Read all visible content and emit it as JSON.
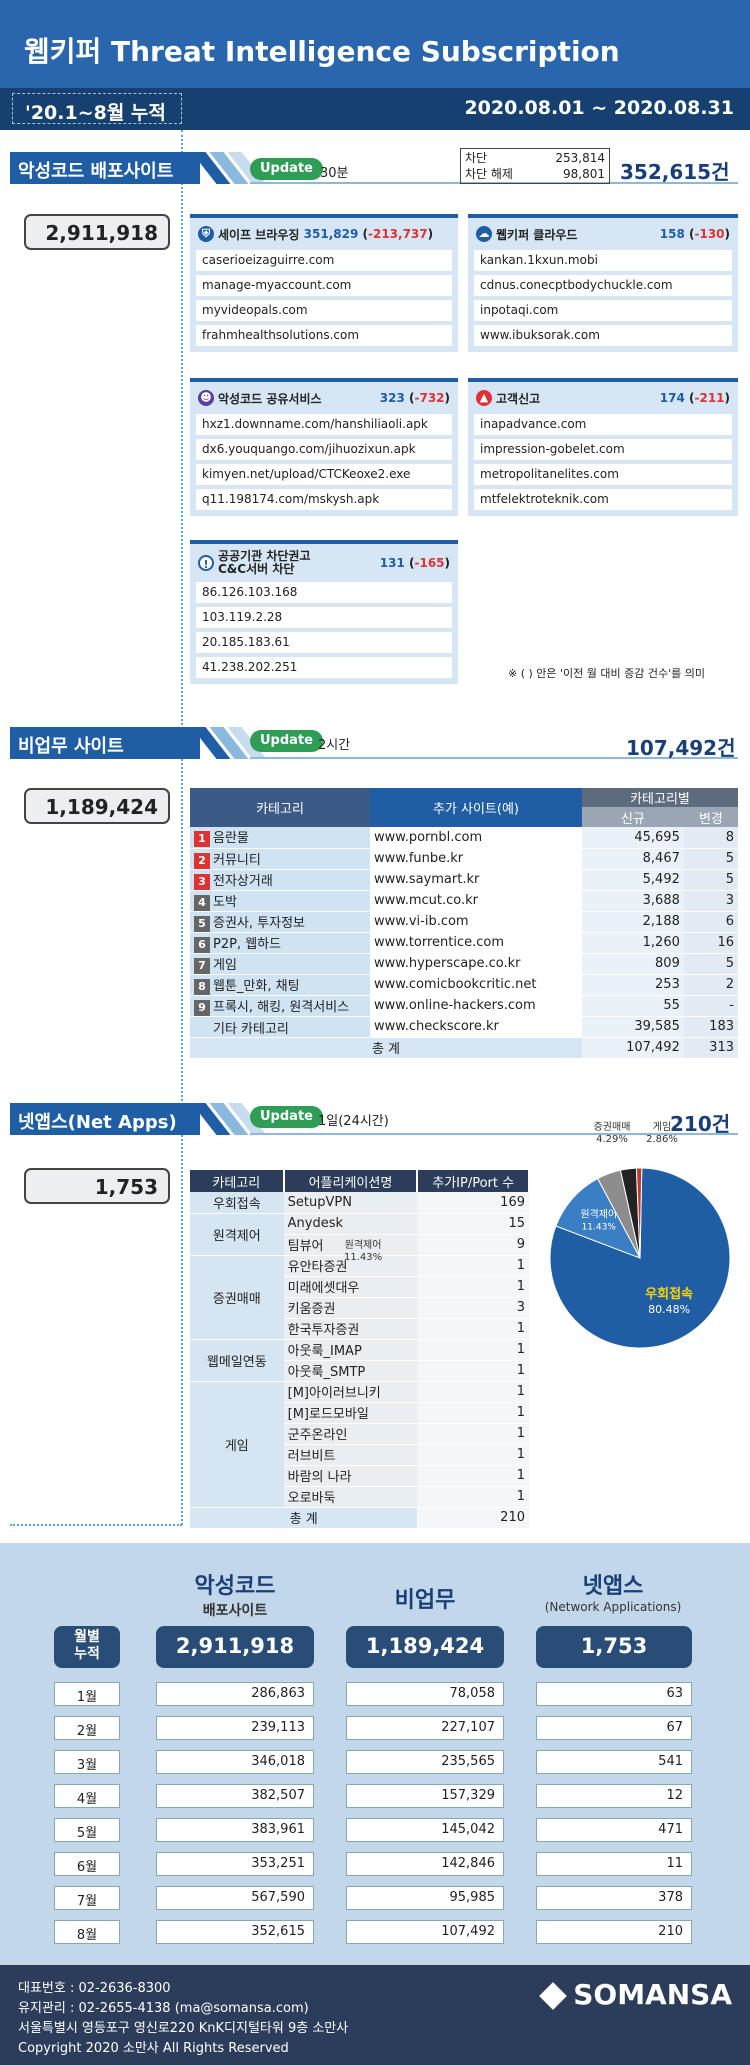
{
  "header": {
    "title": "웹키퍼 Threat Intelligence Subscription",
    "period_label": "'20.1~8월 누적",
    "date_range": "2020.08.01 ~ 2020.08.31"
  },
  "s1": {
    "title": "악성코드 배포사이트",
    "update": "Update",
    "update_freq": "30분",
    "block_label": "차단",
    "block_val": "253,814",
    "unblock_label": "차단 해제",
    "unblock_val": "98,801",
    "total": "352,615건",
    "cumulative": "2,911,918",
    "boxes": [
      {
        "name": "세이프 브라우징",
        "count": "351,829",
        "delta": "-213,737",
        "items": [
          "caserioeizaguirre.com",
          "manage-myaccount.com",
          "myvideopals.com",
          "frahmhealthsolutions.com"
        ]
      },
      {
        "name": "웹키퍼 클라우드",
        "count": "158",
        "delta": "-130",
        "items": [
          "kankan.1kxun.mobi",
          "cdnus.conecptbodychuckle.com",
          "inpotaqi.com",
          "www.ibuksorak.com"
        ]
      },
      {
        "name": "악성코드 공유서비스",
        "count": "323",
        "delta": "-732",
        "items": [
          "hxz1.downname.com/hanshiliaoli.apk",
          "dx6.youquango.com/jihuozixun.apk",
          "kimyen.net/upload/CTCKeoxe2.exe",
          "q11.198174.com/mskysh.apk"
        ]
      },
      {
        "name": "고객신고",
        "count": "174",
        "delta": "-211",
        "items": [
          "inapadvance.com",
          "impression-gobelet.com",
          "metropolitanelites.com",
          "mtfelektroteknik.com"
        ]
      },
      {
        "name1": "공공기관 차단권고",
        "name2": "C&C서버 차단",
        "count": "131",
        "delta": "-165",
        "items": [
          "86.126.103.168",
          "103.119.2.28",
          "20.185.183.61",
          "41.238.202.251"
        ]
      }
    ],
    "note": "※ ( ) 안은 '이전 월 대비 증감 건수'를 의미"
  },
  "s2": {
    "title": "비업무 사이트",
    "update": "Update",
    "update_freq": "2시간",
    "total": "107,492건",
    "cumulative": "1,189,424",
    "headers": [
      "카테고리",
      "추가 사이트(예)",
      "카테고리별",
      "신규",
      "변경"
    ],
    "rows": [
      {
        "n": "1",
        "cat": "음란물",
        "site": "www.pornbl.com",
        "new": "45,695",
        "chg": "8"
      },
      {
        "n": "2",
        "cat": "커뮤니티",
        "site": "www.funbe.kr",
        "new": "8,467",
        "chg": "5"
      },
      {
        "n": "3",
        "cat": "전자상거래",
        "site": "www.saymart.kr",
        "new": "5,492",
        "chg": "5"
      },
      {
        "n": "4",
        "cat": "도박",
        "site": "www.mcut.co.kr",
        "new": "3,688",
        "chg": "3"
      },
      {
        "n": "5",
        "cat": "증권사, 투자정보",
        "site": "www.vi-ib.com",
        "new": "2,188",
        "chg": "6"
      },
      {
        "n": "6",
        "cat": "P2P, 웹하드",
        "site": "www.torrentice.com",
        "new": "1,260",
        "chg": "16"
      },
      {
        "n": "7",
        "cat": "게임",
        "site": "www.hyperscape.co.kr",
        "new": "809",
        "chg": "5"
      },
      {
        "n": "8",
        "cat": "웹툰_만화, 채팅",
        "site": "www.comicbookcritic.net",
        "new": "253",
        "chg": "2"
      },
      {
        "n": "9",
        "cat": "프록시, 해킹, 원격서비스",
        "site": "www.online-hackers.com",
        "new": "55",
        "chg": "-"
      },
      {
        "n": "",
        "cat": "기타 카테고리",
        "site": "www.checkscore.kr",
        "new": "39,585",
        "chg": "183"
      }
    ],
    "sum_label": "총 계",
    "sum_new": "107,492",
    "sum_chg": "313"
  },
  "s3": {
    "title": "넷앱스(Net Apps)",
    "update": "Update",
    "update_freq": "1일(24시간)",
    "total": "210건",
    "cumulative": "1,753",
    "headers": [
      "카테고리",
      "어플리케이션명",
      "추가IP/Port 수"
    ],
    "groups": [
      {
        "cat": "우회접속",
        "apps": [
          [
            "SetupVPN",
            "169"
          ]
        ]
      },
      {
        "cat": "원격제어",
        "apps": [
          [
            "Anydesk",
            "15"
          ],
          [
            "팀뷰어",
            "9"
          ]
        ]
      },
      {
        "cat": "증권매매",
        "apps": [
          [
            "유안타증권",
            "1"
          ],
          [
            "미래에셋대우",
            "1"
          ],
          [
            "키움증권",
            "3"
          ],
          [
            "한국투자증권",
            "1"
          ]
        ]
      },
      {
        "cat": "웹메일연동",
        "apps": [
          [
            "아웃룩_IMAP",
            "1"
          ],
          [
            "아웃룩_SMTP",
            "1"
          ]
        ]
      },
      {
        "cat": "게임",
        "apps": [
          [
            "[M]아이러브니키",
            "1"
          ],
          [
            "[M]로드모바일",
            "1"
          ],
          [
            "군주온라인",
            "1"
          ],
          [
            "러브비트",
            "1"
          ],
          [
            "바람의 나라",
            "1"
          ],
          [
            "오로바둑",
            "1"
          ]
        ]
      }
    ],
    "sum_label": "총 계",
    "sum_val": "210",
    "overlap_label": "원격제어",
    "overlap_pct": "11.43%"
  },
  "chart_data": {
    "type": "pie",
    "categories": [
      "우회접속",
      "원격제어",
      "증권매매",
      "게임",
      "웹메일연동"
    ],
    "values": [
      80.48,
      11.43,
      4.29,
      2.86,
      0.95
    ],
    "labels": [
      "80.48%",
      "11.43%",
      "4.29%",
      "2.86%",
      ""
    ],
    "colors": [
      "#1f5ea5",
      "#3a7fc4",
      "#8c8c8c",
      "#222222",
      "#c0392b"
    ]
  },
  "bottom": {
    "col1_title": "악성코드",
    "col1_sub": "배포사이트",
    "col2_title": "비업무",
    "col3_title": "넷앱스",
    "col3_sub": "(Network Applications)",
    "cum_label1": "월별",
    "cum_label2": "누적",
    "totals": [
      "2,911,918",
      "1,189,424",
      "1,753"
    ],
    "months": [
      {
        "m": "1월",
        "a": "286,863",
        "b": "78,058",
        "c": "63"
      },
      {
        "m": "2월",
        "a": "239,113",
        "b": "227,107",
        "c": "67"
      },
      {
        "m": "3월",
        "a": "346,018",
        "b": "235,565",
        "c": "541"
      },
      {
        "m": "4월",
        "a": "382,507",
        "b": "157,329",
        "c": "12"
      },
      {
        "m": "5월",
        "a": "383,961",
        "b": "145,042",
        "c": "471"
      },
      {
        "m": "6월",
        "a": "353,251",
        "b": "142,846",
        "c": "11"
      },
      {
        "m": "7월",
        "a": "567,590",
        "b": "95,985",
        "c": "378"
      },
      {
        "m": "8월",
        "a": "352,615",
        "b": "107,492",
        "c": "210"
      }
    ]
  },
  "footer": {
    "l1": "대표번호 : 02-2636-8300",
    "l2": "유지관리 : 02-2655-4138 (ma@somansa.com)",
    "l3": "서울특별시 영등포구 영신로220 KnK디지털타워 9층 소만사",
    "l4": "Copyright 2020 소만사 All Rights Reserved",
    "logo": "SOMANSA"
  }
}
